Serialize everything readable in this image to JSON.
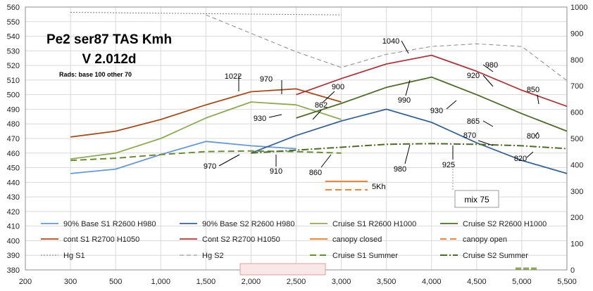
{
  "chart_data": {
    "type": "line",
    "title_line1": "Pe2 ser87 TAS Kmh",
    "title_line2": "V 2.012d",
    "subtitle": "Rads: base 100  other 70",
    "x_ticks": [
      "200",
      "300",
      "500",
      "1,000",
      "1,500",
      "2,000",
      "2,500",
      "3,000",
      "3,500",
      "4,000",
      "4,500",
      "5,000",
      "5,500"
    ],
    "y_left": {
      "min": 380,
      "max": 560,
      "step": 10
    },
    "y_right": {
      "min": 0,
      "max": 1000,
      "step": 100
    },
    "grid": true,
    "series": [
      {
        "name": "90% Base S1 R2600 H980",
        "color": "#6a98cc",
        "dash": "",
        "width": 1.8,
        "axis": "left",
        "x": [
          "300",
          "500",
          "1,000",
          "1,500",
          "2,000",
          "2,500"
        ],
        "values": [
          446,
          449,
          459,
          468,
          465,
          463
        ]
      },
      {
        "name": "90% Base S2 R2600 H980",
        "color": "#3a6291",
        "dash": "",
        "width": 1.8,
        "axis": "left",
        "x": [
          "2,000",
          "2,500",
          "3,000",
          "3,500",
          "4,000",
          "4,500",
          "5,000",
          "5,500"
        ],
        "values": [
          460,
          472,
          482,
          490,
          481,
          467,
          455,
          446
        ]
      },
      {
        "name": "Cruise S1 R2600 H1000",
        "color": "#8daa55",
        "dash": "",
        "width": 1.8,
        "axis": "left",
        "x": [
          "300",
          "500",
          "1,000",
          "1,500",
          "2,000",
          "2,500",
          "3,000"
        ],
        "values": [
          456,
          460,
          470,
          484,
          495,
          493,
          483
        ]
      },
      {
        "name": "Cruise S2 R2600 H1000",
        "color": "#4f6b2b",
        "dash": "",
        "width": 1.8,
        "axis": "left",
        "x": [
          "2,500",
          "3,000",
          "3,500",
          "4,000",
          "4,500",
          "5,000",
          "5,500"
        ],
        "values": [
          484,
          494,
          505,
          512,
          500,
          487,
          475
        ]
      },
      {
        "name": "cont S1 R2700 H1050",
        "color": "#a04e1e",
        "dash": "",
        "width": 1.8,
        "axis": "left",
        "x": [
          "300",
          "500",
          "1,000",
          "1,500",
          "2,000",
          "2,500",
          "3,000"
        ],
        "values": [
          471,
          475,
          483,
          493,
          502,
          504,
          495
        ]
      },
      {
        "name": "Cont S2 R2700 H1050",
        "color": "#a8393e",
        "dash": "",
        "width": 1.8,
        "axis": "left",
        "x": [
          "2,500",
          "3,000",
          "3,500",
          "4,000",
          "4,500",
          "5,000",
          "5,500"
        ],
        "values": [
          500,
          511,
          521,
          527,
          516,
          503,
          492
        ]
      },
      {
        "name": "canopy closed",
        "color": "#e07a26",
        "dash": "",
        "width": 1.8,
        "axis": "left",
        "x": [],
        "values": []
      },
      {
        "name": "canopy open",
        "color": "#e07a26",
        "dash": "9,5",
        "width": 1.8,
        "axis": "left",
        "x": [],
        "values": []
      },
      {
        "name": "Hg S1",
        "color": "#7a7a7a",
        "dash": "2,2",
        "width": 1,
        "axis": "right",
        "x": [
          "300",
          "1,500",
          "3,000"
        ],
        "values": [
          980,
          975,
          970
        ]
      },
      {
        "name": "Hg S2",
        "color": "#8a8a8a",
        "dash": "6,4",
        "width": 1,
        "axis": "right",
        "x": [
          "1,500",
          "2,000",
          "2,500",
          "3,000",
          "3,500",
          "4,000",
          "4,500",
          "5,000",
          "5,500"
        ],
        "values": [
          970,
          900,
          830,
          770,
          820,
          850,
          860,
          850,
          720
        ]
      },
      {
        "name": "Cruise S1 Summer",
        "color": "#6b8a3a",
        "dash": "9,5",
        "width": 2,
        "axis": "left",
        "x": [
          "300",
          "500",
          "1,000",
          "1,500",
          "2,000",
          "2,500",
          "3,000"
        ],
        "values": [
          455,
          456.5,
          459,
          461,
          461.5,
          461,
          460
        ]
      },
      {
        "name": "Cruise S2 Summer",
        "color": "#4f6b2b",
        "dash": "10,3,2,3",
        "width": 2,
        "axis": "left",
        "x": [
          "2,000",
          "2,500",
          "3,000",
          "3,500",
          "4,000",
          "4,500",
          "5,000",
          "5,500"
        ],
        "values": [
          460,
          462,
          464,
          466,
          466.5,
          466,
          465,
          463
        ]
      }
    ],
    "annotations": [
      "1022",
      "970",
      "930",
      "900",
      "862",
      "970",
      "910",
      "860",
      "1040",
      "990",
      "980",
      "980",
      "930",
      "920",
      "925",
      "870",
      "865",
      "850",
      "800",
      "820"
    ],
    "labels": {
      "kh": "5Kh",
      "mix": "mix 75"
    }
  }
}
